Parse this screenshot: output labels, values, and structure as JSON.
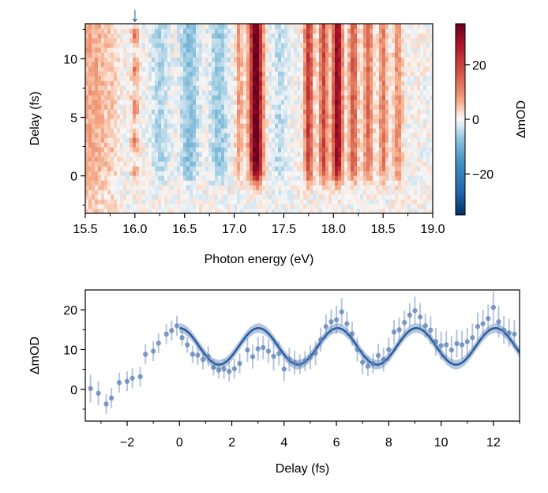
{
  "chart_data": [
    {
      "type": "heatmap",
      "xlabel": "Photon energy (eV)",
      "ylabel": "Delay (fs)",
      "xlim": [
        15.5,
        19.0
      ],
      "ylim": [
        -3.2,
        13.0
      ],
      "xticks": [
        "15.5",
        "16.0",
        "16.5",
        "17.0",
        "17.5",
        "18.0",
        "18.5",
        "19.0"
      ],
      "yticks": [
        "0",
        "5",
        "10"
      ],
      "colorbar": {
        "label": "ΔmOD",
        "range": [
          -35,
          35
        ],
        "ticks": [
          "20",
          "0",
          "−20"
        ],
        "colormap": "RdBu_r"
      },
      "annotation": {
        "symbol": "↓",
        "x": 16.0,
        "color": "#2b5d9c"
      },
      "features": [
        {
          "energy": 15.52,
          "width": 0.05,
          "amp": 6,
          "kind": "pre-edge"
        },
        {
          "energy": 15.62,
          "width": 0.05,
          "amp": 5,
          "kind": "pre-edge"
        },
        {
          "energy": 15.75,
          "width": 0.06,
          "amp": 4,
          "kind": "pre-edge"
        },
        {
          "energy": 16.0,
          "width": 0.025,
          "amp": 12,
          "kind": "osc"
        },
        {
          "energy": 16.25,
          "width": 0.06,
          "amp": -5,
          "kind": "band"
        },
        {
          "energy": 16.55,
          "width": 0.06,
          "amp": -8,
          "kind": "band"
        },
        {
          "energy": 16.85,
          "width": 0.06,
          "amp": -7,
          "kind": "band"
        },
        {
          "energy": 17.05,
          "width": 0.025,
          "amp": 8,
          "kind": "band"
        },
        {
          "energy": 17.22,
          "width": 0.045,
          "amp": 36,
          "kind": "band"
        },
        {
          "energy": 17.45,
          "width": 0.05,
          "amp": -4,
          "kind": "band"
        },
        {
          "energy": 17.75,
          "width": 0.03,
          "amp": 20,
          "kind": "band"
        },
        {
          "energy": 17.9,
          "width": 0.03,
          "amp": 18,
          "kind": "band"
        },
        {
          "energy": 18.04,
          "width": 0.035,
          "amp": 30,
          "kind": "band"
        },
        {
          "energy": 18.2,
          "width": 0.03,
          "amp": 16,
          "kind": "band"
        },
        {
          "energy": 18.35,
          "width": 0.03,
          "amp": 14,
          "kind": "band"
        },
        {
          "energy": 18.5,
          "width": 0.03,
          "amp": 12,
          "kind": "band"
        },
        {
          "energy": 18.65,
          "width": 0.03,
          "amp": 10,
          "kind": "band"
        }
      ]
    },
    {
      "type": "scatter",
      "xlabel": "Delay (fs)",
      "ylabel": "ΔmOD",
      "xlim": [
        -3.6,
        13.0
      ],
      "ylim": [
        -8.0,
        25.0
      ],
      "xticks": [
        "−2",
        "0",
        "2",
        "4",
        "6",
        "8",
        "10",
        "12"
      ],
      "yticks": [
        "0",
        "10",
        "20"
      ],
      "colors": {
        "points": "#5b7fb5",
        "fit": "#2b5d9c",
        "band": "#9db4d6"
      },
      "series": [
        {
          "kind": "points",
          "x": [
            -3.4,
            -3.1,
            -2.8,
            -2.6,
            -2.3,
            -2.0,
            -1.8,
            -1.5,
            -1.3,
            -1.0,
            -0.8,
            -0.5,
            -0.3,
            -0.1,
            0.1,
            0.3,
            0.5,
            0.7,
            0.9,
            1.1,
            1.3,
            1.5,
            1.7,
            1.9,
            2.1,
            2.3,
            2.6,
            2.8,
            3.0,
            3.2,
            3.4,
            3.6,
            3.8,
            4.0,
            4.2,
            4.4,
            4.6,
            4.8,
            5.0,
            5.2,
            5.4,
            5.6,
            5.8,
            6.0,
            6.2,
            6.4,
            6.6,
            6.8,
            7.0,
            7.2,
            7.4,
            7.6,
            7.8,
            8.0,
            8.2,
            8.4,
            8.6,
            8.8,
            9.0,
            9.2,
            9.4,
            9.6,
            9.8,
            10.0,
            10.2,
            10.4,
            10.6,
            10.8,
            11.0,
            11.2,
            11.4,
            11.6,
            11.8,
            12.0,
            12.2,
            12.4,
            12.6,
            12.8
          ],
          "y": [
            0.2,
            -1.0,
            -3.7,
            -2.2,
            1.7,
            2.0,
            2.8,
            3.2,
            8.8,
            9.6,
            11.6,
            13.9,
            14.8,
            16.0,
            13.0,
            11.2,
            8.8,
            8.6,
            7.5,
            8.3,
            5.5,
            4.8,
            5.1,
            4.5,
            5.2,
            6.5,
            9.9,
            8.2,
            10.2,
            10.5,
            9.6,
            8.3,
            9.0,
            5.1,
            7.5,
            6.7,
            6.3,
            7.1,
            8.1,
            9.1,
            12.5,
            15.8,
            17.0,
            17.5,
            19.5,
            16.5,
            14.0,
            10.0,
            6.8,
            5.8,
            6.5,
            8.5,
            7.5,
            10.0,
            14.4,
            15.0,
            16.8,
            18.7,
            19.8,
            18.2,
            16.0,
            14.9,
            12.0,
            11.0,
            11.2,
            9.9,
            11.5,
            11.2,
            12.0,
            13.0,
            15.8,
            16.5,
            17.8,
            20.6,
            17.0,
            14.9,
            14.2,
            13.9
          ],
          "err": [
            3.5,
            3.0,
            2.5,
            2.5,
            2.5,
            2.5,
            2.5,
            2.5,
            2.5,
            2.5,
            2.5,
            2.5,
            2.5,
            2.5,
            2.0,
            2.0,
            2.2,
            2.5,
            2.5,
            2.5,
            2.0,
            2.0,
            2.5,
            2.5,
            2.5,
            2.5,
            3.0,
            3.0,
            3.0,
            3.0,
            3.0,
            3.5,
            3.0,
            3.0,
            3.0,
            3.0,
            2.5,
            2.5,
            3.0,
            3.0,
            3.0,
            3.0,
            3.0,
            3.5,
            3.5,
            3.0,
            3.0,
            3.0,
            3.0,
            2.5,
            2.5,
            3.0,
            3.0,
            3.0,
            3.0,
            3.0,
            3.0,
            3.0,
            3.5,
            3.5,
            3.0,
            3.5,
            3.5,
            3.5,
            3.5,
            3.5,
            3.5,
            3.5,
            3.5,
            3.5,
            3.5,
            3.5,
            3.5,
            4.0,
            4.0,
            3.5,
            3.5,
            3.5
          ]
        },
        {
          "kind": "fit",
          "model": "sine",
          "offset": 10.8,
          "amplitude": 4.6,
          "period": 3.02,
          "phase_at_x": 0.0,
          "x_start": 0.0,
          "x_end": 13.0,
          "band_halfwidth": 1.2
        }
      ]
    }
  ]
}
